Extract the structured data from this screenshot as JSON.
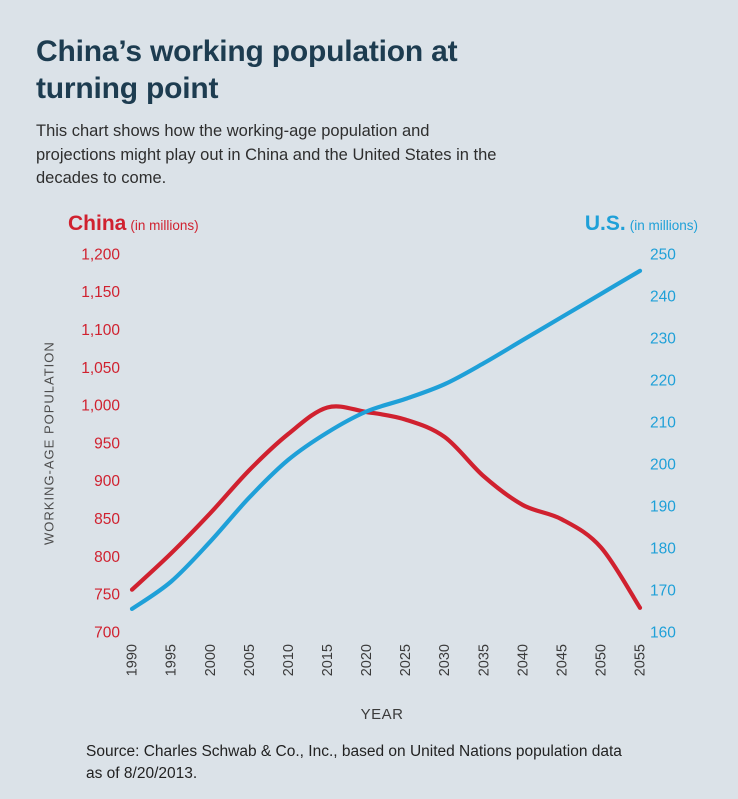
{
  "title": "China’s working population at turning point",
  "subtitle": "This chart shows how the working-age population and projections might play out in China and the United States in the decades to come.",
  "legend": {
    "left_name": "China",
    "left_units": "(in millions)",
    "right_name": "U.S.",
    "right_units": "(in millions)"
  },
  "source": "Source: Charles Schwab & Co., Inc., based on United Nations population data as of 8/20/2013.",
  "colors": {
    "background": "#dbe2e8",
    "title": "#1d3c50",
    "china": "#d0212f",
    "us": "#1fa0d8",
    "x_tick_text": "#3b3b3b"
  },
  "chart_data": {
    "type": "line",
    "title": "China’s working population at turning point",
    "x": [
      1990,
      1995,
      2000,
      2005,
      2010,
      2015,
      2020,
      2025,
      2030,
      2035,
      2040,
      2045,
      2050,
      2055
    ],
    "series": [
      {
        "name": "China",
        "axis": "left",
        "color": "#d0212f",
        "units": "millions",
        "values": [
          756,
          804,
          857,
          914,
          962,
          997,
          991,
          981,
          958,
          906,
          868,
          849,
          812,
          732
        ]
      },
      {
        "name": "U.S.",
        "axis": "right",
        "color": "#1fa0d8",
        "units": "millions",
        "values": [
          165.5,
          172,
          181.5,
          192,
          201,
          207.5,
          212.5,
          215.5,
          219,
          224,
          229.5,
          235,
          240.5,
          246
        ]
      }
    ],
    "left_axis": {
      "min": 700,
      "max": 1200,
      "tick_step": 50,
      "tick_labels": [
        "700",
        "750",
        "800",
        "850",
        "900",
        "950",
        "1,000",
        "1,050",
        "1,100",
        "1,150",
        "1,200"
      ],
      "label": "WORKING-AGE POPULATION"
    },
    "right_axis": {
      "min": 160,
      "max": 250,
      "tick_step": 10,
      "tick_labels": [
        "160",
        "170",
        "180",
        "190",
        "200",
        "210",
        "220",
        "230",
        "240",
        "250"
      ]
    },
    "xlabel": "YEAR",
    "grid": false,
    "legend_position": "top"
  }
}
